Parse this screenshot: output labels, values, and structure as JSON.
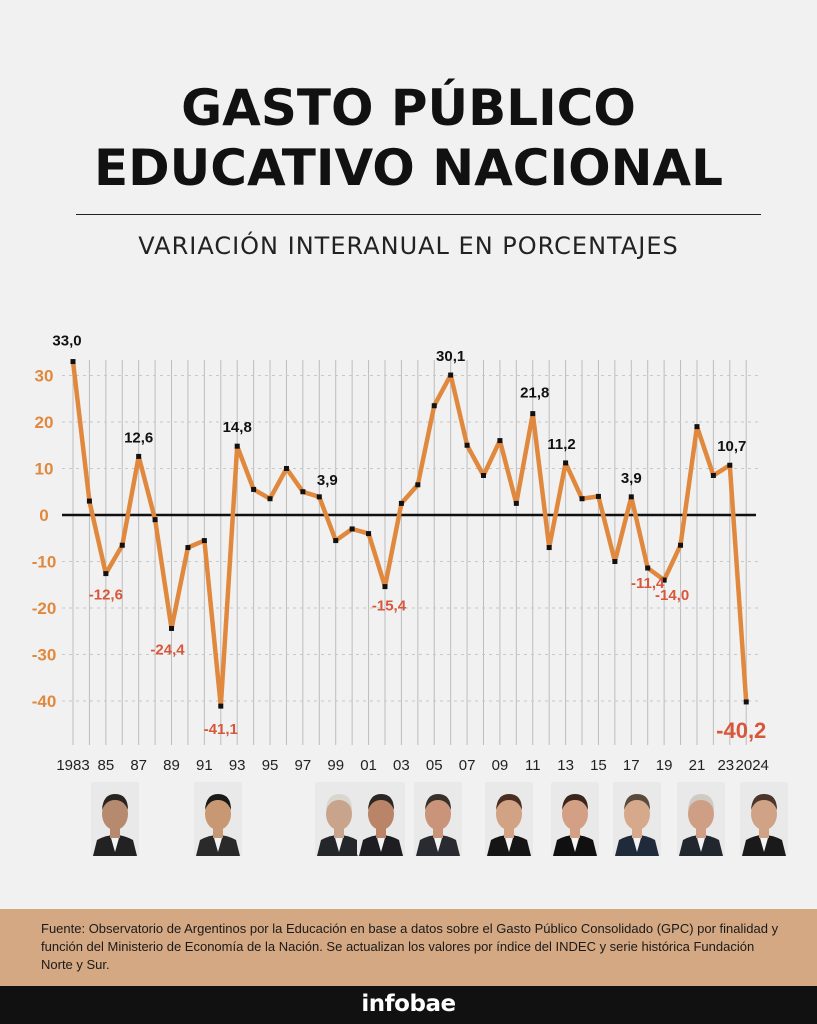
{
  "header": {
    "title_line1": "GASTO PÚBLICO",
    "title_line2": "EDUCATIVO NACIONAL",
    "subtitle": "VARIACIÓN INTERANUAL EN PORCENTAJES"
  },
  "colors": {
    "line": "#e0893e",
    "negative_label": "#d8563a",
    "axis_tick": "#e0893e",
    "source_bg": "#d4a882",
    "footer_bg": "#111111"
  },
  "chart_data": {
    "type": "line",
    "title": "",
    "xlabel": "",
    "ylabel": "",
    "ylim": [
      -45,
      33
    ],
    "y_ticks": [
      30,
      20,
      10,
      0,
      -10,
      -20,
      -30,
      -40
    ],
    "y_tick_labels": [
      "30",
      "20",
      "10",
      "0",
      "-10",
      "-20",
      "-30",
      "-40"
    ],
    "x": [
      1983,
      1984,
      1985,
      1986,
      1987,
      1988,
      1989,
      1990,
      1991,
      1992,
      1993,
      1994,
      1995,
      1996,
      1997,
      1998,
      1999,
      2000,
      2001,
      2002,
      2003,
      2004,
      2005,
      2006,
      2007,
      2008,
      2009,
      2010,
      2011,
      2012,
      2013,
      2014,
      2015,
      2016,
      2017,
      2018,
      2019,
      2020,
      2021,
      2022,
      2023,
      2024
    ],
    "x_tick_labels": [
      "1983",
      "85",
      "87",
      "89",
      "91",
      "93",
      "95",
      "97",
      "99",
      "01",
      "03",
      "05",
      "07",
      "09",
      "11",
      "13",
      "15",
      "17",
      "19",
      "21",
      "23",
      "2024"
    ],
    "x_tick_years": [
      1983,
      1985,
      1987,
      1989,
      1991,
      1993,
      1995,
      1997,
      1999,
      2001,
      2003,
      2005,
      2007,
      2009,
      2011,
      2013,
      2015,
      2017,
      2019,
      2021,
      2023,
      2024
    ],
    "series": [
      {
        "values": [
          33.0,
          3.0,
          -12.6,
          -6.5,
          12.6,
          -1.0,
          -24.4,
          -7.0,
          -5.5,
          -41.1,
          14.8,
          5.5,
          3.5,
          10.0,
          5.0,
          3.9,
          -5.5,
          -3.0,
          -4.0,
          -15.4,
          2.5,
          6.5,
          23.5,
          30.1,
          15.0,
          8.5,
          16.0,
          2.5,
          21.8,
          -7.0,
          11.2,
          3.5,
          4.0,
          -10.0,
          3.9,
          -11.4,
          -14.0,
          -6.5,
          19.0,
          8.5,
          10.7,
          -40.2
        ]
      }
    ],
    "annotations": [
      {
        "year": 1983,
        "text": "33,0",
        "type": "pos"
      },
      {
        "year": 1985,
        "text": "-12,6",
        "type": "neg"
      },
      {
        "year": 1987,
        "text": "12,6",
        "type": "pos"
      },
      {
        "year": 1989,
        "text": "-24,4",
        "type": "neg"
      },
      {
        "year": 1992,
        "text": "-41,1",
        "type": "neg"
      },
      {
        "year": 1993,
        "text": "14,8",
        "type": "pos"
      },
      {
        "year": 1998,
        "text": "3,9",
        "type": "pos"
      },
      {
        "year": 2002,
        "text": "-15,4",
        "type": "neg"
      },
      {
        "year": 2006,
        "text": "30,1",
        "type": "pos"
      },
      {
        "year": 2011,
        "text": "21,8",
        "type": "pos"
      },
      {
        "year": 2013,
        "text": "11,2",
        "type": "pos"
      },
      {
        "year": 2017,
        "text": "3,9",
        "type": "pos"
      },
      {
        "year": 2018,
        "text": "-11,4",
        "type": "neg"
      },
      {
        "year": 2019,
        "text": "-14,0",
        "type": "neg"
      },
      {
        "year": 2023,
        "text": "10,7",
        "type": "pos"
      },
      {
        "year": 2024,
        "text": "-40,2",
        "type": "neg-big"
      }
    ]
  },
  "portraits": [
    {
      "name": "raul-alfonsin",
      "skin": "#b58a6e",
      "hair": "#2a2420",
      "suit": "#222"
    },
    {
      "name": "carlos-menem",
      "skin": "#c79873",
      "hair": "#1c1a18",
      "suit": "#2a2a2a"
    },
    {
      "name": "fernando-de-la-rua",
      "skin": "#c9a48c",
      "hair": "#d9d6d0",
      "suit": "#25262a"
    },
    {
      "name": "eduardo-duhalde",
      "skin": "#b98468",
      "hair": "#2b2623",
      "suit": "#1e1e22"
    },
    {
      "name": "nestor-kirchner",
      "skin": "#c99479",
      "hair": "#3a302a",
      "suit": "#2a2b30"
    },
    {
      "name": "cristina-kirchner-2007",
      "skin": "#d2a285",
      "hair": "#4a2e22",
      "suit": "#151515"
    },
    {
      "name": "cristina-kirchner-2011",
      "skin": "#d3a085",
      "hair": "#3b241b",
      "suit": "#101010"
    },
    {
      "name": "mauricio-macri",
      "skin": "#d6a98c",
      "hair": "#5a4a3c",
      "suit": "#1f2a3a"
    },
    {
      "name": "alberto-fernandez",
      "skin": "#cf9f85",
      "hair": "#cfcac4",
      "suit": "#22262e"
    },
    {
      "name": "javier-milei",
      "skin": "#d0a386",
      "hair": "#4a362a",
      "suit": "#1a1a1a"
    }
  ],
  "source": {
    "text": "Fuente: Observatorio de Argentinos por la Educación en base a datos sobre el Gasto Público Consolidado (GPC) por finalidad y función del Ministerio de Economía de la Nación. Se actualizan los valores por índice del INDEC y serie histórica Fundación Norte y Sur."
  },
  "footer": {
    "brand": "infobae"
  }
}
